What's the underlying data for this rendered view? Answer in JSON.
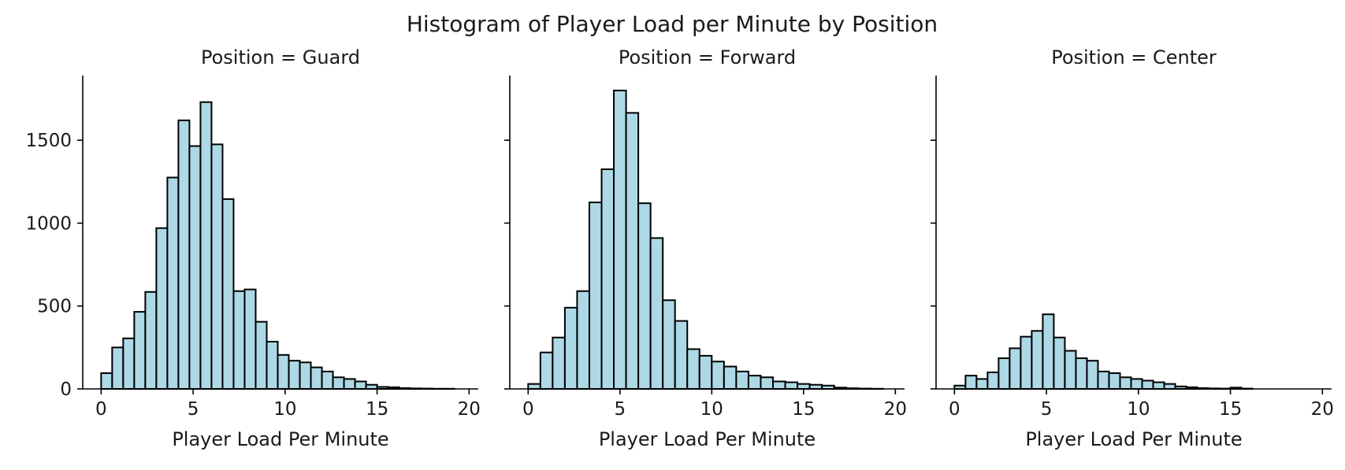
{
  "figure": {
    "title": "Histogram of Player Load per Minute by Position"
  },
  "style": {
    "bar_fill": "#add8e6",
    "bar_edge": "#000000"
  },
  "chart_data": [
    {
      "type": "bar",
      "title": "Position = Guard",
      "xlabel": "Player Load Per Minute",
      "ylabel": "",
      "xlim": [
        -1,
        20.5
      ],
      "ylim": [
        0,
        1890
      ],
      "xticks": [
        0,
        5,
        10,
        15,
        20
      ],
      "yticks": [
        0,
        500,
        1000,
        1500
      ],
      "grid": false,
      "bin_edges": [
        0,
        0.6,
        1.2,
        1.8,
        2.4,
        3.0,
        3.6,
        4.2,
        4.8,
        5.4,
        6.0,
        6.6,
        7.2,
        7.8,
        8.4,
        9.0,
        9.6,
        10.2,
        10.8,
        11.4,
        12.0,
        12.6,
        13.2,
        13.8,
        14.4,
        15.0,
        15.6,
        16.2,
        16.8,
        17.4,
        18.0,
        18.6,
        19.2
      ],
      "values": [
        95,
        250,
        305,
        465,
        585,
        970,
        1275,
        1620,
        1465,
        1730,
        1475,
        1145,
        590,
        600,
        405,
        285,
        205,
        170,
        160,
        130,
        105,
        70,
        60,
        45,
        25,
        12,
        10,
        5,
        3,
        2,
        1,
        1
      ]
    },
    {
      "type": "bar",
      "title": "Position = Forward",
      "xlabel": "Player Load Per Minute",
      "ylabel": "",
      "xlim": [
        -1,
        20.5
      ],
      "ylim": [
        0,
        1890
      ],
      "xticks": [
        0,
        5,
        10,
        15,
        20
      ],
      "yticks": [
        0,
        500,
        1000,
        1500
      ],
      "grid": false,
      "bin_edges": [
        0,
        0.6667,
        1.3333,
        2.0,
        2.6667,
        3.3333,
        4.0,
        4.6667,
        5.3333,
        6.0,
        6.6667,
        7.3333,
        8.0,
        8.6667,
        9.3333,
        10.0,
        10.6667,
        11.3333,
        12.0,
        12.6667,
        13.3333,
        14.0,
        14.6667,
        15.3333,
        16.0,
        16.6667,
        17.3333,
        18.0,
        18.6667,
        19.3333
      ],
      "values": [
        30,
        220,
        310,
        490,
        590,
        1125,
        1325,
        1800,
        1665,
        1120,
        910,
        535,
        410,
        240,
        200,
        165,
        135,
        105,
        80,
        70,
        45,
        40,
        30,
        25,
        20,
        8,
        4,
        2,
        1
      ]
    },
    {
      "type": "bar",
      "title": "Position = Center",
      "xlabel": "Player Load Per Minute",
      "ylabel": "",
      "xlim": [
        -1,
        20.5
      ],
      "ylim": [
        0,
        1890
      ],
      "xticks": [
        0,
        5,
        10,
        15,
        20
      ],
      "yticks": [
        0,
        500,
        1000,
        1500
      ],
      "grid": false,
      "bin_edges": [
        0,
        0.6,
        1.2,
        1.8,
        2.4,
        3.0,
        3.6,
        4.2,
        4.8,
        5.4,
        6.0,
        6.6,
        7.2,
        7.8,
        8.4,
        9.0,
        9.6,
        10.2,
        10.8,
        11.4,
        12.0,
        12.6,
        13.2,
        13.8,
        14.4,
        15.0,
        15.6,
        16.2
      ],
      "values": [
        20,
        80,
        60,
        100,
        185,
        245,
        315,
        350,
        450,
        310,
        230,
        185,
        170,
        105,
        95,
        70,
        60,
        50,
        40,
        30,
        15,
        10,
        5,
        3,
        2,
        8,
        2
      ]
    }
  ]
}
